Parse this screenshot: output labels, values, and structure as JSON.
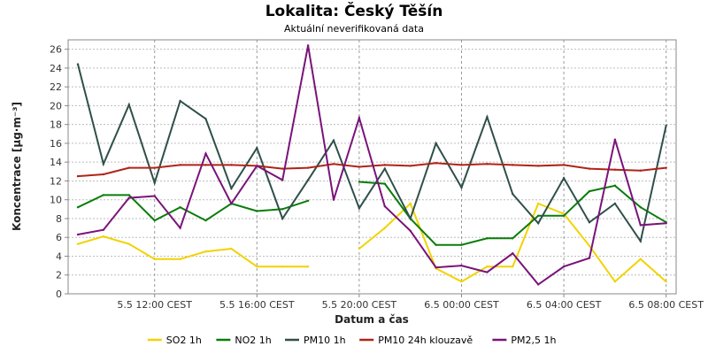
{
  "chart_data": {
    "type": "line",
    "title": "Lokalita: Český Těšín",
    "subtitle": "Aktuální neverifikovaná data",
    "xlabel": "Datum a čas",
    "ylabel": "Koncentrace [µg·m⁻³]",
    "ylim": [
      0,
      27
    ],
    "y_ticks": [
      0,
      2,
      4,
      6,
      8,
      10,
      12,
      14,
      16,
      18,
      20,
      22,
      24,
      26
    ],
    "x_range": [
      "5.5 09:00",
      "6.5 09:00"
    ],
    "x_hours": [
      "5.5 09:00",
      "5.5 10:00",
      "5.5 11:00",
      "5.5 12:00",
      "5.5 13:00",
      "5.5 14:00",
      "5.5 15:00",
      "5.5 16:00",
      "5.5 17:00",
      "5.5 18:00",
      "5.5 19:00",
      "5.5 20:00",
      "5.5 21:00",
      "5.5 22:00",
      "5.5 23:00",
      "6.5 00:00",
      "6.5 01:00",
      "6.5 02:00",
      "6.5 03:00",
      "6.5 04:00",
      "6.5 05:00",
      "6.5 06:00",
      "6.5 07:00",
      "6.5 08:00"
    ],
    "x_ticks": [
      {
        "label": "5.5 12:00 CEST",
        "hour": 3
      },
      {
        "label": "5.5 16:00 CEST",
        "hour": 7
      },
      {
        "label": "5.5 20:00 CEST",
        "hour": 11
      },
      {
        "label": "6.5 00:00 CEST",
        "hour": 15
      },
      {
        "label": "6.5 04:00 CEST",
        "hour": 19
      },
      {
        "label": "6.5 08:00 CEST",
        "hour": 23
      }
    ],
    "grid": true,
    "legend_position": "bottom",
    "series": [
      {
        "name": "SO2 1h",
        "color": "#f2d200",
        "values": [
          5.3,
          6.1,
          5.3,
          3.7,
          3.7,
          4.5,
          4.8,
          2.9,
          2.9,
          2.9,
          null,
          4.8,
          7.0,
          9.6,
          2.7,
          1.3,
          2.9,
          2.9,
          9.6,
          8.5,
          5.1,
          1.3,
          3.7,
          1.3
        ]
      },
      {
        "name": "NO2 1h",
        "color": "#0a7d0a",
        "values": [
          9.2,
          10.5,
          10.5,
          7.8,
          9.2,
          7.8,
          9.6,
          8.8,
          9.0,
          9.9,
          null,
          11.9,
          11.7,
          8.0,
          5.2,
          5.2,
          5.9,
          5.9,
          8.3,
          8.3,
          10.9,
          11.5,
          9.2,
          7.6
        ]
      },
      {
        "name": "PM10 1h",
        "color": "#2f4f4a",
        "values": [
          24.4,
          13.8,
          20.1,
          11.8,
          20.5,
          18.6,
          11.2,
          15.5,
          8.0,
          12.1,
          16.3,
          9.1,
          13.3,
          8.0,
          16.0,
          11.3,
          18.8,
          10.6,
          7.5,
          12.3,
          7.6,
          9.6,
          5.6,
          17.9
        ]
      },
      {
        "name": "PM10 24h klouzavě",
        "color": "#b02418",
        "values": [
          12.5,
          12.7,
          13.4,
          13.4,
          13.7,
          13.7,
          13.7,
          13.6,
          13.3,
          13.4,
          13.8,
          13.5,
          13.7,
          13.6,
          13.9,
          13.7,
          13.8,
          13.7,
          13.6,
          13.7,
          13.3,
          13.2,
          13.1,
          13.4
        ]
      },
      {
        "name": "PM2,5 1h",
        "color": "#7a137a",
        "values": [
          6.3,
          6.8,
          10.2,
          10.4,
          7.0,
          14.9,
          9.6,
          13.6,
          12.1,
          26.4,
          10.0,
          18.7,
          9.3,
          6.7,
          2.8,
          3.0,
          2.3,
          4.3,
          1.0,
          2.9,
          3.8,
          16.4,
          7.3,
          7.5
        ]
      }
    ]
  }
}
